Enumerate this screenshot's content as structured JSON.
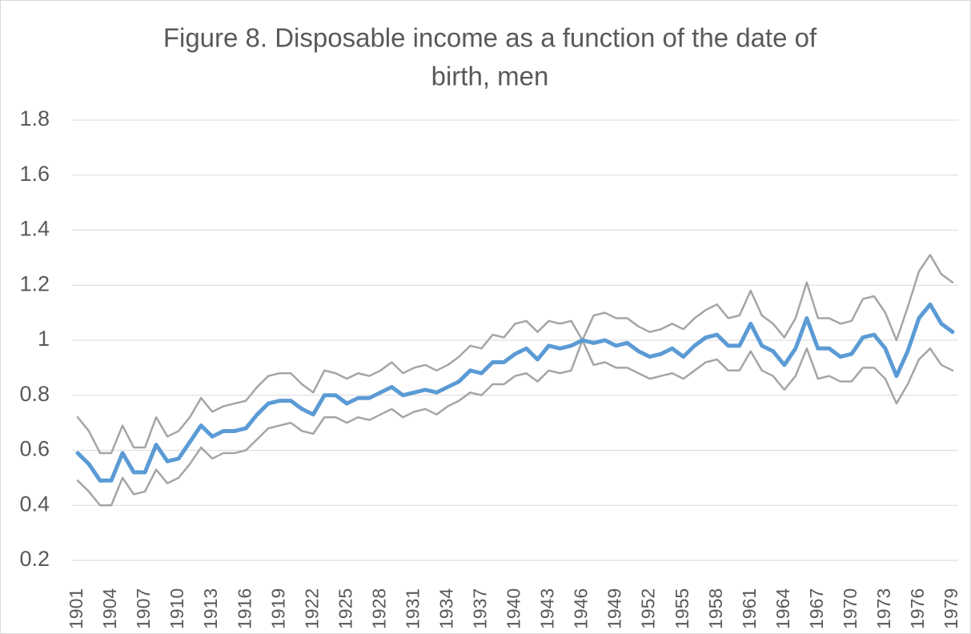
{
  "chart_data": {
    "type": "line",
    "title": [
      "Figure 8. Disposable income as a function of the date of",
      "birth, men"
    ],
    "categories": [
      "1901",
      null,
      null,
      "1904",
      null,
      null,
      "1907",
      null,
      null,
      "1910",
      null,
      null,
      "1913",
      null,
      null,
      "1916",
      null,
      null,
      "1919",
      null,
      null,
      "1922",
      null,
      null,
      "1925",
      null,
      null,
      "1928",
      null,
      null,
      "1931",
      null,
      null,
      "1934",
      null,
      null,
      "1937",
      null,
      null,
      "1940",
      null,
      null,
      "1943",
      null,
      null,
      "1946",
      null,
      null,
      "1949",
      null,
      null,
      "1952",
      null,
      null,
      "1955",
      null,
      null,
      "1958",
      null,
      null,
      "1961",
      null,
      null,
      "1964",
      null,
      null,
      "1967",
      null,
      null,
      "1970",
      null,
      null,
      "1973",
      null,
      null,
      "1976",
      null,
      null,
      "1979"
    ],
    "series": [
      {
        "color": "#a5a5a5",
        "line_width": 2.5,
        "values": [
          0.72,
          0.67,
          0.59,
          0.59,
          0.69,
          0.61,
          0.61,
          0.72,
          0.65,
          0.67,
          0.72,
          0.79,
          0.74,
          0.76,
          0.77,
          0.78,
          0.83,
          0.87,
          0.88,
          0.88,
          0.84,
          0.81,
          0.89,
          0.88,
          0.86,
          0.88,
          0.87,
          0.89,
          0.92,
          0.88,
          0.9,
          0.91,
          0.89,
          0.91,
          0.94,
          0.98,
          0.97,
          1.02,
          1.01,
          1.06,
          1.07,
          1.03,
          1.07,
          1.06,
          1.07,
          1.0,
          1.09,
          1.1,
          1.08,
          1.08,
          1.05,
          1.03,
          1.04,
          1.06,
          1.04,
          1.08,
          1.11,
          1.13,
          1.08,
          1.09,
          1.18,
          1.09,
          1.06,
          1.01,
          1.08,
          1.21,
          1.08,
          1.08,
          1.06,
          1.07,
          1.15,
          1.16,
          1.1,
          1.0,
          1.12,
          1.25,
          1.31,
          1.24,
          1.21
        ]
      },
      {
        "color": "#a5a5a5",
        "line_width": 2.5,
        "values": [
          0.49,
          0.45,
          0.4,
          0.4,
          0.5,
          0.44,
          0.45,
          0.53,
          0.48,
          0.5,
          0.55,
          0.61,
          0.57,
          0.59,
          0.59,
          0.6,
          0.64,
          0.68,
          0.69,
          0.7,
          0.67,
          0.66,
          0.72,
          0.72,
          0.7,
          0.72,
          0.71,
          0.73,
          0.75,
          0.72,
          0.74,
          0.75,
          0.73,
          0.76,
          0.78,
          0.81,
          0.8,
          0.84,
          0.84,
          0.87,
          0.88,
          0.85,
          0.89,
          0.88,
          0.89,
          1.0,
          0.91,
          0.92,
          0.9,
          0.9,
          0.88,
          0.86,
          0.87,
          0.88,
          0.86,
          0.89,
          0.92,
          0.93,
          0.89,
          0.89,
          0.96,
          0.89,
          0.87,
          0.82,
          0.87,
          0.97,
          0.86,
          0.87,
          0.85,
          0.85,
          0.9,
          0.9,
          0.86,
          0.77,
          0.84,
          0.93,
          0.97,
          0.91,
          0.89
        ]
      },
      {
        "color": "#5b9bd5",
        "line_width": 5,
        "values": [
          0.59,
          0.55,
          0.49,
          0.49,
          0.59,
          0.52,
          0.52,
          0.62,
          0.56,
          0.57,
          0.63,
          0.69,
          0.65,
          0.67,
          0.67,
          0.68,
          0.73,
          0.77,
          0.78,
          0.78,
          0.75,
          0.73,
          0.8,
          0.8,
          0.77,
          0.79,
          0.79,
          0.81,
          0.83,
          0.8,
          0.81,
          0.82,
          0.81,
          0.83,
          0.85,
          0.89,
          0.88,
          0.92,
          0.92,
          0.95,
          0.97,
          0.93,
          0.98,
          0.97,
          0.98,
          1.0,
          0.99,
          1.0,
          0.98,
          0.99,
          0.96,
          0.94,
          0.95,
          0.97,
          0.94,
          0.98,
          1.01,
          1.02,
          0.98,
          0.98,
          1.06,
          0.98,
          0.96,
          0.91,
          0.97,
          1.08,
          0.97,
          0.97,
          0.94,
          0.95,
          1.01,
          1.02,
          0.97,
          0.87,
          0.96,
          1.08,
          1.13,
          1.06,
          1.03
        ]
      }
    ],
    "ylim": [
      0.2,
      1.8
    ],
    "yticks": [
      0.2,
      0.4,
      0.6,
      0.8,
      1,
      1.2,
      1.4,
      1.6,
      1.8
    ],
    "grid": true
  }
}
